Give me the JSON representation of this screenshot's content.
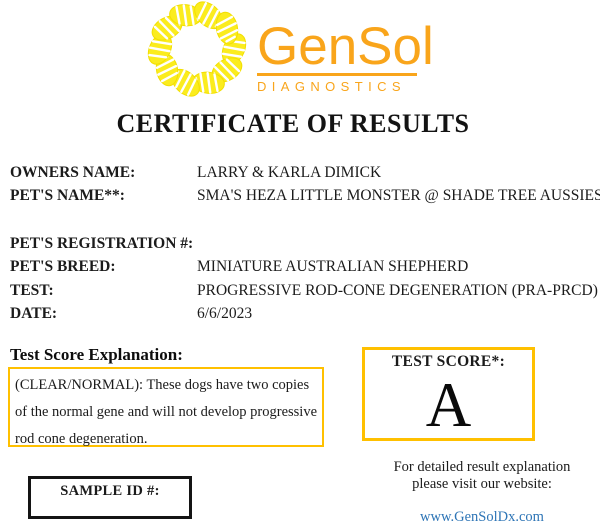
{
  "logo": {
    "brand": "GenSol",
    "tagline": "DIAGNOSTICS"
  },
  "title": "CERTIFICATE OF RESULTS",
  "fields": [
    {
      "label": "OWNERS NAME:",
      "value": "LARRY & KARLA DIMICK"
    },
    {
      "label": "PET'S NAME**:",
      "value": "SMA'S HEZA LITTLE MONSTER @ SHADE TREE AUSSIES"
    },
    {
      "label": "PET'S REGISTRATION #:",
      "value": ""
    },
    {
      "label": "PET'S BREED:",
      "value": "MINIATURE AUSTRALIAN SHEPHERD"
    },
    {
      "label": "TEST:",
      "value": "PROGRESSIVE ROD-CONE DEGENERATION (PRA-PRCD)"
    },
    {
      "label": "DATE:",
      "value": "6/6/2023"
    }
  ],
  "explanation": {
    "heading": "Test Score Explanation:",
    "body": "(CLEAR/NORMAL): These dogs have two copies of the normal gene and will not develop progressive rod cone degeneration."
  },
  "score": {
    "label": "TEST SCORE*:",
    "value": "A"
  },
  "sample": {
    "label": "SAMPLE ID #:",
    "value": ""
  },
  "footer": {
    "line1": "For detailed result explanation",
    "line2": "please visit our website:",
    "link": "www.GenSolDx.com"
  },
  "colors": {
    "brand_orange": "#F9A51B",
    "wreath_yellow": "#FBEC1E",
    "gold_border": "#FFC000",
    "link_blue": "#2E75B6"
  }
}
